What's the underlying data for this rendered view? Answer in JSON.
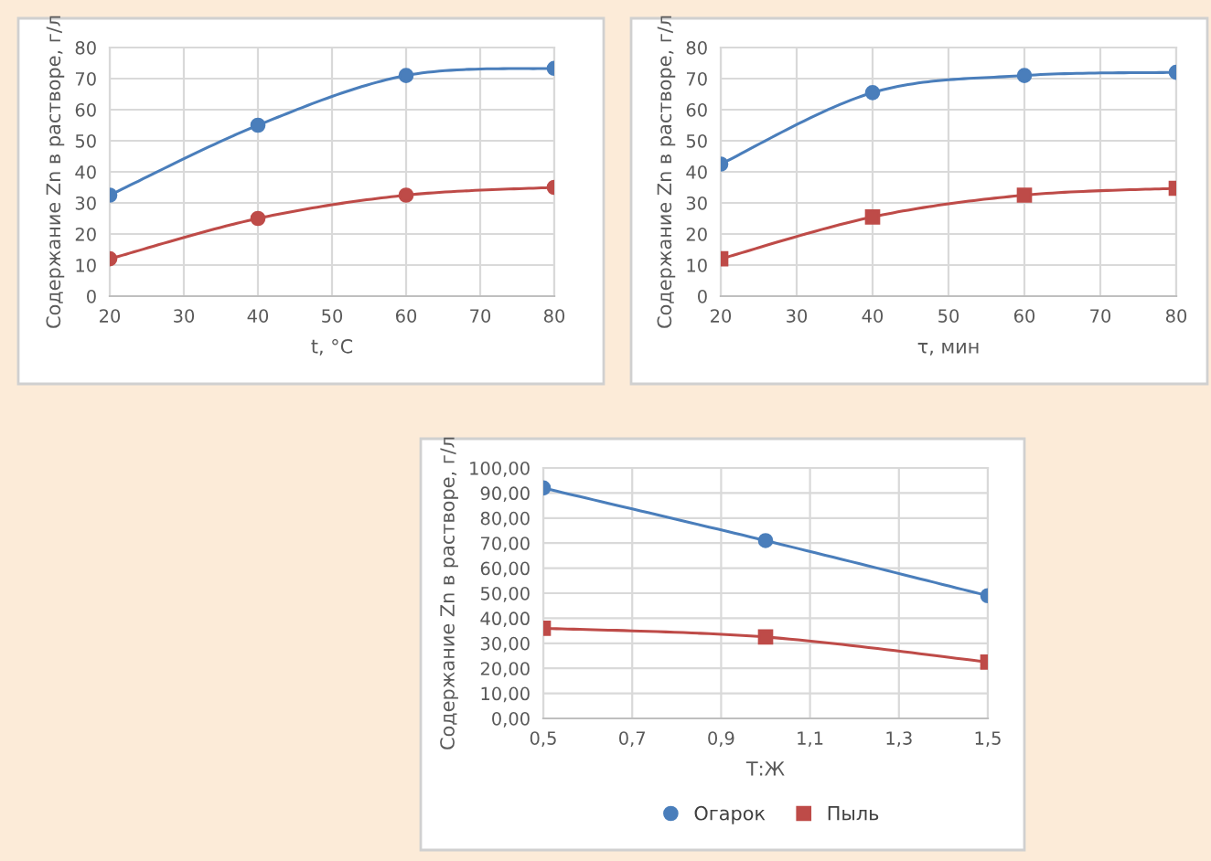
{
  "chart_data": [
    {
      "type": "line",
      "xlabel": "t, °C",
      "ylabel": "Содержание Zn в растворе, г/л",
      "x": [
        20,
        40,
        60,
        80
      ],
      "series": [
        {
          "color": "#4a7ebb",
          "marker": "circle",
          "values": [
            32.5,
            55,
            71,
            73.3
          ]
        },
        {
          "color": "#be4b48",
          "marker": "circle",
          "values": [
            12,
            25,
            32.5,
            35
          ]
        }
      ],
      "xlim": [
        20,
        80
      ],
      "xticks": [
        20,
        30,
        40,
        50,
        60,
        70,
        80
      ],
      "ylim": [
        0,
        80
      ],
      "yticks": [
        0,
        10,
        20,
        30,
        40,
        50,
        60,
        70,
        80
      ],
      "grid": true,
      "legend": false
    },
    {
      "type": "line",
      "xlabel": "τ, мин",
      "ylabel": "Содержание Zn в растворе, г/л",
      "x": [
        20,
        40,
        60,
        80
      ],
      "series": [
        {
          "color": "#4a7ebb",
          "marker": "circle",
          "values": [
            42.5,
            65.5,
            71,
            72
          ]
        },
        {
          "color": "#be4b48",
          "marker": "square",
          "values": [
            12,
            25.5,
            32.5,
            34.7
          ]
        }
      ],
      "xlim": [
        20,
        80
      ],
      "xticks": [
        20,
        30,
        40,
        50,
        60,
        70,
        80
      ],
      "ylim": [
        0,
        80
      ],
      "yticks": [
        0,
        10,
        20,
        30,
        40,
        50,
        60,
        70,
        80
      ],
      "grid": true,
      "legend": false
    },
    {
      "type": "line",
      "xlabel": "Т:Ж",
      "ylabel": "Содержание Zn в растворе, г/л",
      "x": [
        0.5,
        1.0,
        1.5
      ],
      "series": [
        {
          "name": "Огарок",
          "color": "#4a7ebb",
          "marker": "circle",
          "values": [
            92,
            71,
            49
          ]
        },
        {
          "name": "Пыль",
          "color": "#be4b48",
          "marker": "square",
          "values": [
            36,
            32.5,
            22.5
          ]
        }
      ],
      "xlim": [
        0.5,
        1.5
      ],
      "xticks": [
        {
          "value": 0.5,
          "label": "0,5"
        },
        {
          "value": 0.7,
          "label": "0,7"
        },
        {
          "value": 0.9,
          "label": "0,9"
        },
        {
          "value": 1.1,
          "label": "1,1"
        },
        {
          "value": 1.3,
          "label": "1,3"
        },
        {
          "value": 1.5,
          "label": "1,5"
        }
      ],
      "ylim": [
        0,
        100
      ],
      "yticks": [
        {
          "value": 0,
          "label": "0,00"
        },
        {
          "value": 10,
          "label": "10,00"
        },
        {
          "value": 20,
          "label": "20,00"
        },
        {
          "value": 30,
          "label": "30,00"
        },
        {
          "value": 40,
          "label": "40,00"
        },
        {
          "value": 50,
          "label": "50,00"
        },
        {
          "value": 60,
          "label": "60,00"
        },
        {
          "value": 70,
          "label": "70,00"
        },
        {
          "value": 80,
          "label": "80,00"
        },
        {
          "value": 90,
          "label": "90,00"
        },
        {
          "value": 100,
          "label": "100,00"
        }
      ],
      "grid": true,
      "legend": "bottom"
    }
  ]
}
